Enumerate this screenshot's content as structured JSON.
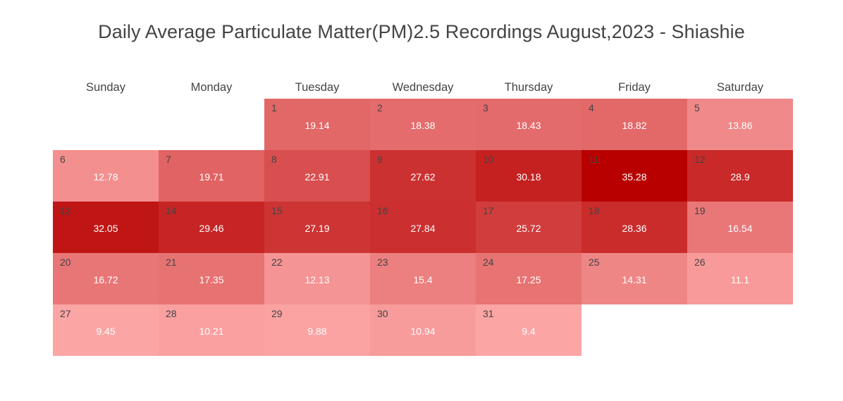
{
  "title": "Daily Average Particulate Matter(PM)2.5 Recordings August,2023 - Shiashie",
  "colors": {
    "low": "#fca5a5",
    "high": "#b80000",
    "number_text": "#444444",
    "value_text": "#ffffff"
  },
  "chart_data": {
    "type": "heatmap",
    "layout": "calendar",
    "month": "August",
    "year": 2023,
    "weekdays": [
      "Sunday",
      "Monday",
      "Tuesday",
      "Wednesday",
      "Thursday",
      "Friday",
      "Saturday"
    ],
    "first_weekday_index": 2,
    "days": [
      {
        "day": 1,
        "value": 19.14
      },
      {
        "day": 2,
        "value": 18.38
      },
      {
        "day": 3,
        "value": 18.43
      },
      {
        "day": 4,
        "value": 18.82
      },
      {
        "day": 5,
        "value": 13.86
      },
      {
        "day": 6,
        "value": 12.78
      },
      {
        "day": 7,
        "value": 19.71
      },
      {
        "day": 8,
        "value": 22.91
      },
      {
        "day": 9,
        "value": 27.62
      },
      {
        "day": 10,
        "value": 30.18
      },
      {
        "day": 11,
        "value": 35.28
      },
      {
        "day": 12,
        "value": 28.9
      },
      {
        "day": 13,
        "value": 32.05
      },
      {
        "day": 14,
        "value": 29.46
      },
      {
        "day": 15,
        "value": 27.19
      },
      {
        "day": 16,
        "value": 27.84
      },
      {
        "day": 17,
        "value": 25.72
      },
      {
        "day": 18,
        "value": 28.36
      },
      {
        "day": 19,
        "value": 16.54
      },
      {
        "day": 20,
        "value": 16.72
      },
      {
        "day": 21,
        "value": 17.35
      },
      {
        "day": 22,
        "value": 12.13
      },
      {
        "day": 23,
        "value": 15.4
      },
      {
        "day": 24,
        "value": 17.25
      },
      {
        "day": 25,
        "value": 14.31
      },
      {
        "day": 26,
        "value": 11.1
      },
      {
        "day": 27,
        "value": 9.45
      },
      {
        "day": 28,
        "value": 10.21
      },
      {
        "day": 29,
        "value": 9.88
      },
      {
        "day": 30,
        "value": 10.94
      },
      {
        "day": 31,
        "value": 9.4
      }
    ]
  }
}
